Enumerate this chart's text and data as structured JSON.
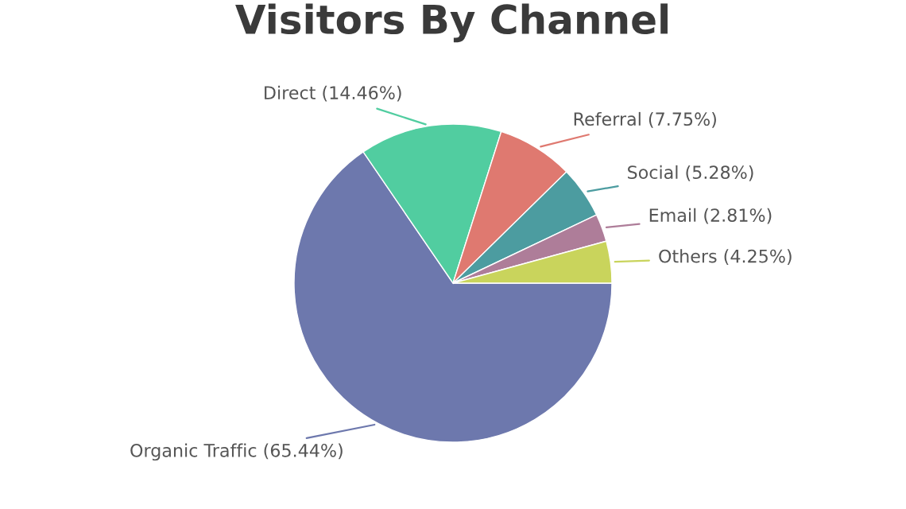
{
  "chart_data": {
    "type": "pie",
    "title": "Visitors By Channel",
    "categories": [
      "Organic Traffic",
      "Direct",
      "Referral",
      "Social",
      "Email",
      "Others"
    ],
    "values": [
      65.44,
      14.46,
      7.75,
      5.28,
      2.81,
      4.25
    ],
    "value_labels": [
      "(65.44%)",
      "(14.46%)",
      "(7.75%)",
      "(5.28%)",
      "(2.81%)",
      "(4.25%)"
    ],
    "colors": [
      "#6d78ad",
      "#51cda0",
      "#df7970",
      "#4c9ca0",
      "#ae7d99",
      "#c9d45c"
    ],
    "legend": false
  }
}
